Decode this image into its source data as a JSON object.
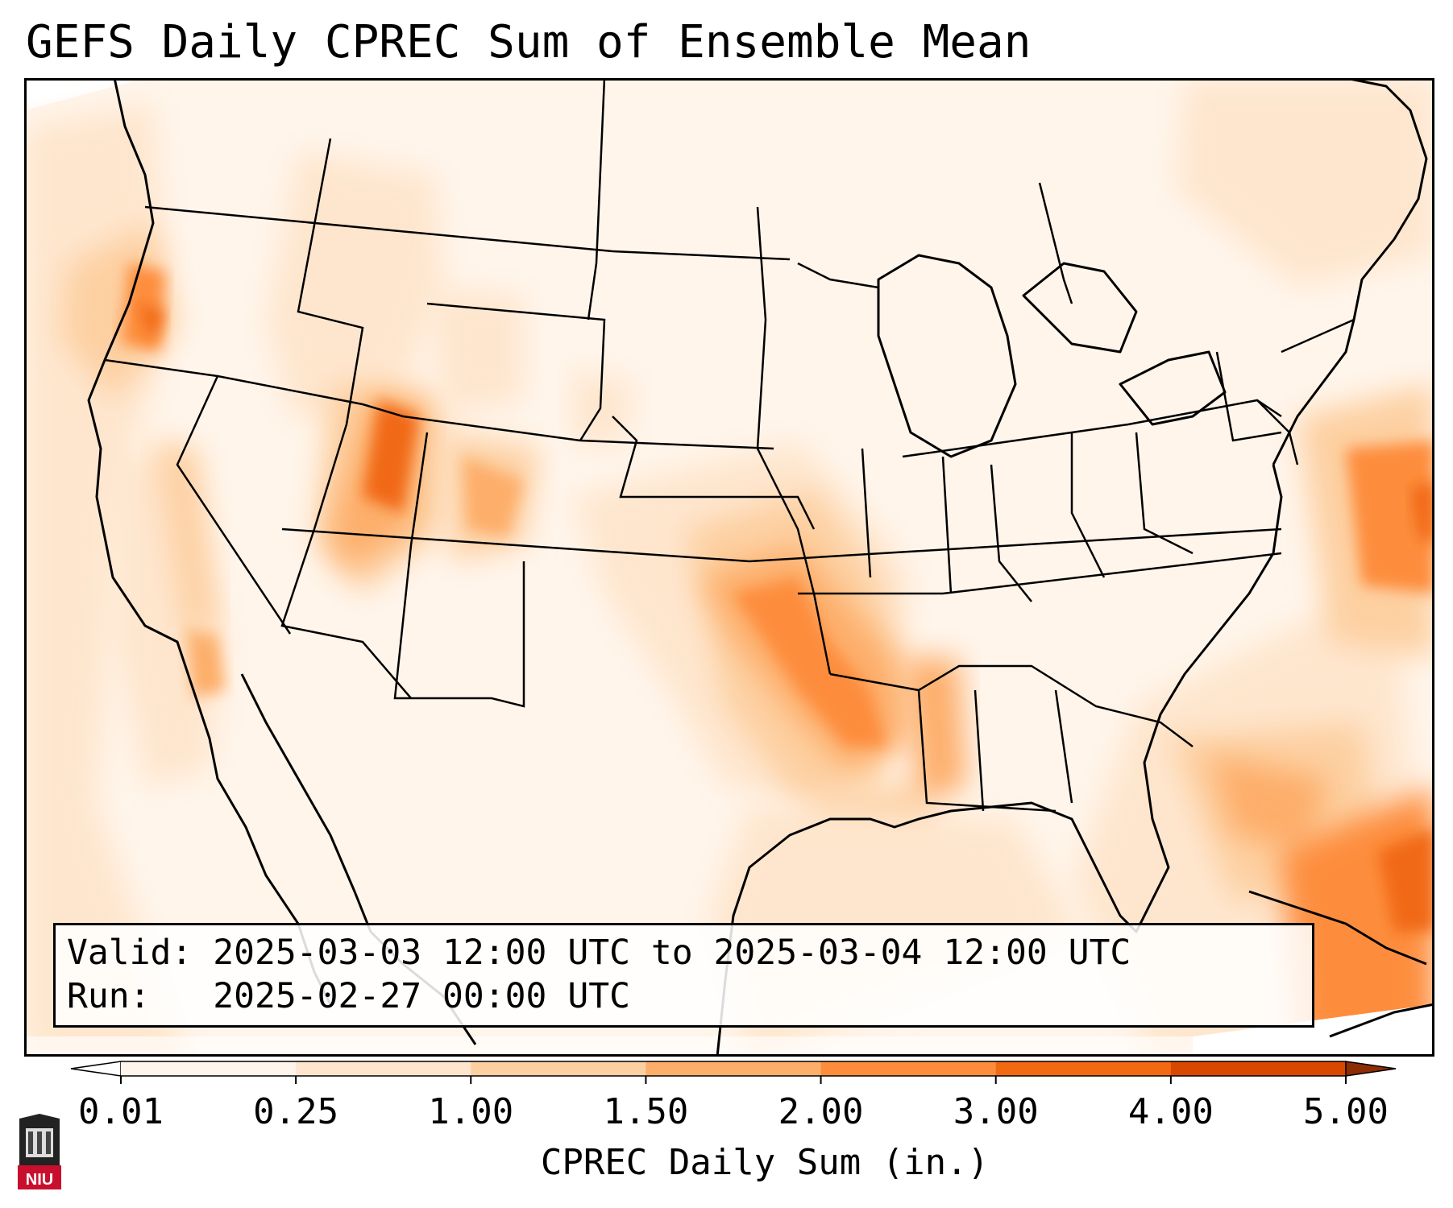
{
  "title": "GEFS Daily CPREC Sum of Ensemble Mean",
  "info": {
    "valid": "Valid: 2025-03-03 12:00 UTC to 2025-03-04 12:00 UTC",
    "run": "Run:   2025-02-27 00:00 UTC"
  },
  "colorbar": {
    "label": "CPREC Daily Sum (in.)",
    "ticks": [
      "0.01",
      "0.25",
      "1.00",
      "1.50",
      "2.00",
      "3.00",
      "4.00",
      "5.00"
    ],
    "colors": [
      "#fff5eb",
      "#fee6ce",
      "#fdd0a2",
      "#fdae6b",
      "#fd8d3c",
      "#f16913",
      "#d94801",
      "#8c2d04"
    ]
  },
  "logo": {
    "text": "NIU"
  }
}
